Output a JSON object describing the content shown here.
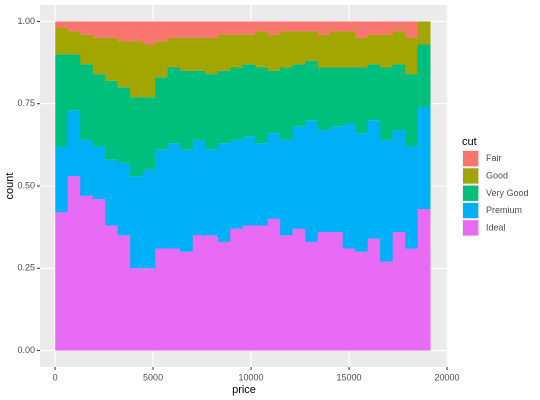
{
  "chart_data": {
    "type": "histogram",
    "position": "fill",
    "x_label": "price",
    "y_label": "count",
    "legend_title": "cut",
    "legend_position": "right",
    "grid": true,
    "bins": [
      7,
      645,
      1283,
      1921,
      2558,
      3196,
      3834,
      4472,
      5109,
      5747,
      6385,
      7023,
      7661,
      8298,
      8936,
      9574,
      10212,
      10850,
      11487,
      12125,
      12763,
      13401,
      14038,
      14676,
      15314,
      15952,
      16590,
      17227,
      17865,
      18503,
      19141
    ],
    "series": [
      {
        "name": "Fair",
        "color": "#f8766d",
        "values": [
          0.02,
          0.03,
          0.04,
          0.05,
          0.05,
          0.06,
          0.06,
          0.07,
          0.06,
          0.05,
          0.05,
          0.05,
          0.05,
          0.04,
          0.04,
          0.04,
          0.03,
          0.04,
          0.03,
          0.03,
          0.03,
          0.04,
          0.03,
          0.03,
          0.05,
          0.04,
          0.04,
          0.03,
          0.05,
          0
        ]
      },
      {
        "name": "Good",
        "color": "#a3a500",
        "values": [
          0.08,
          0.07,
          0.09,
          0.11,
          0.13,
          0.14,
          0.17,
          0.16,
          0.11,
          0.09,
          0.1,
          0.1,
          0.11,
          0.11,
          0.1,
          0.09,
          0.11,
          0.11,
          0.11,
          0.1,
          0.09,
          0.1,
          0.11,
          0.11,
          0.09,
          0.09,
          0.1,
          0.1,
          0.11,
          0.07
        ]
      },
      {
        "name": "Very Good",
        "color": "#00bf7d",
        "values": [
          0.28,
          0.17,
          0.23,
          0.22,
          0.24,
          0.23,
          0.24,
          0.22,
          0.22,
          0.23,
          0.24,
          0.21,
          0.23,
          0.22,
          0.22,
          0.22,
          0.23,
          0.19,
          0.22,
          0.19,
          0.18,
          0.19,
          0.18,
          0.17,
          0.2,
          0.17,
          0.22,
          0.2,
          0.22,
          0.19
        ]
      },
      {
        "name": "Premium",
        "color": "#00b0f6",
        "values": [
          0.2,
          0.2,
          0.17,
          0.16,
          0.2,
          0.22,
          0.28,
          0.3,
          0.3,
          0.32,
          0.31,
          0.29,
          0.26,
          0.3,
          0.27,
          0.27,
          0.25,
          0.26,
          0.29,
          0.31,
          0.37,
          0.31,
          0.32,
          0.38,
          0.36,
          0.36,
          0.37,
          0.31,
          0.31,
          0.31
        ]
      },
      {
        "name": "Ideal",
        "color": "#e76bf3",
        "values": [
          0.42,
          0.53,
          0.47,
          0.46,
          0.38,
          0.35,
          0.25,
          0.25,
          0.31,
          0.31,
          0.3,
          0.35,
          0.35,
          0.33,
          0.37,
          0.38,
          0.38,
          0.4,
          0.35,
          0.37,
          0.33,
          0.36,
          0.36,
          0.31,
          0.3,
          0.34,
          0.27,
          0.36,
          0.31,
          0.43
        ]
      }
    ],
    "xlim": [
      -770,
      20050
    ],
    "xticks": [
      0,
      5000,
      10000,
      15000,
      20000
    ],
    "ylim": [
      -0.05,
      1.05
    ],
    "yticks": [
      {
        "value": 0,
        "label": "0.00"
      },
      {
        "value": 0.25,
        "label": "0.25"
      },
      {
        "value": 0.5,
        "label": "0.50"
      },
      {
        "value": 0.75,
        "label": "0.75"
      },
      {
        "value": 1,
        "label": "1.00"
      }
    ]
  }
}
